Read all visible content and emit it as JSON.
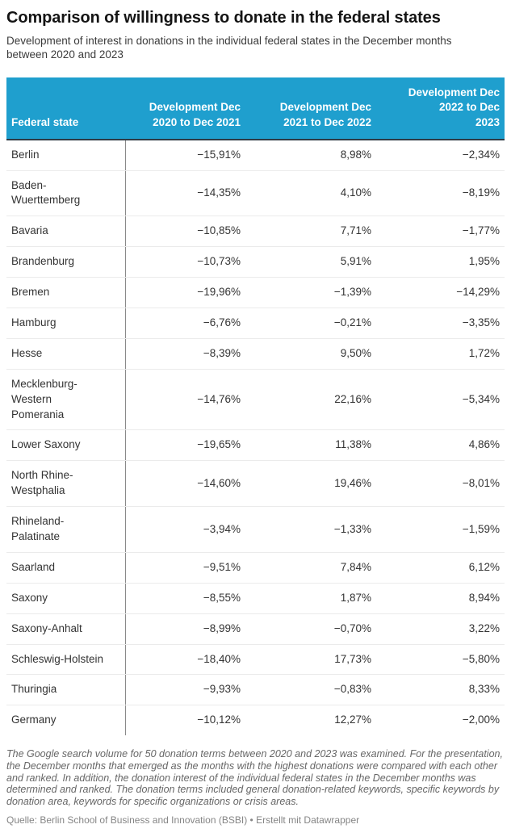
{
  "meta": {
    "title": "Comparison of willingness to donate in the federal states",
    "subtitle": "Development of interest in donations in the individual federal states in the December months\nbetween 2020 and 2023"
  },
  "table": {
    "col_headers": [
      "Federal state",
      "Development Dec\n2020 to Dec 2021",
      "Development Dec\n2021 to Dec 2022",
      "Development Dec\n2022 to Dec\n2023"
    ],
    "rows": [
      {
        "state": "Berlin",
        "values": [
          "−15,91%",
          "8,98%",
          "−2,34%"
        ]
      },
      {
        "state": "Baden-\nWuerttemberg",
        "values": [
          "−14,35%",
          "4,10%",
          "−8,19%"
        ]
      },
      {
        "state": "Bavaria",
        "values": [
          "−10,85%",
          "7,71%",
          "−1,77%"
        ]
      },
      {
        "state": "Brandenburg",
        "values": [
          "−10,73%",
          "5,91%",
          "1,95%"
        ]
      },
      {
        "state": "Bremen",
        "values": [
          "−19,96%",
          "−1,39%",
          "−14,29%"
        ]
      },
      {
        "state": "Hamburg",
        "values": [
          "−6,76%",
          "−0,21%",
          "−3,35%"
        ]
      },
      {
        "state": "Hesse",
        "values": [
          "−8,39%",
          "9,50%",
          "1,72%"
        ]
      },
      {
        "state": "Mecklenburg-\nWestern\nPomerania",
        "values": [
          "−14,76%",
          "22,16%",
          "−5,34%"
        ]
      },
      {
        "state": "Lower Saxony",
        "values": [
          "−19,65%",
          "11,38%",
          "4,86%"
        ]
      },
      {
        "state": "North Rhine-\nWestphalia",
        "values": [
          "−14,60%",
          "19,46%",
          "−8,01%"
        ]
      },
      {
        "state": "Rhineland-\nPalatinate",
        "values": [
          "−3,94%",
          "−1,33%",
          "−1,59%"
        ]
      },
      {
        "state": "Saarland",
        "values": [
          "−9,51%",
          "7,84%",
          "6,12%"
        ]
      },
      {
        "state": "Saxony",
        "values": [
          "−8,55%",
          "1,87%",
          "8,94%"
        ]
      },
      {
        "state": "Saxony-Anhalt",
        "values": [
          "−8,99%",
          "−0,70%",
          "3,22%"
        ]
      },
      {
        "state": "Schleswig-Holstein",
        "values": [
          "−18,40%",
          "17,73%",
          "−5,80%"
        ]
      },
      {
        "state": "Thuringia",
        "values": [
          "−9,93%",
          "−0,83%",
          "8,33%"
        ]
      },
      {
        "state": "Germany",
        "values": [
          "−10,12%",
          "12,27%",
          "−2,00%"
        ]
      }
    ]
  },
  "footer": {
    "note": "The Google search volume for 50 donation terms between 2020 and 2023 was examined. For the presentation, the December months that emerged as the months with the highest donations were compared with each other and ranked. In addition, the donation interest of the individual federal states in the December months was determined and ranked. The donation terms included general donation-related keywords, specific keywords by donation area, keywords for specific organizations or crisis areas.",
    "source_label": "Quelle:",
    "source_text": "Berlin School of Business and Innovation (BSBI)",
    "separator": "•",
    "attribution": "Erstellt mit Datawrapper"
  },
  "colors": {
    "header_bg": "#1f9fce",
    "header_border": "#2f3b45",
    "divider": "#8a8a8a",
    "row_border": "#ebebeb",
    "title_text": "#141414",
    "body_text": "#333333",
    "note_text": "#666666",
    "source_text": "#858585"
  },
  "chart_data": {
    "type": "table",
    "title": "Comparison of willingness to donate in the federal states",
    "subtitle": "Development of interest in donations in the individual federal states in the December months between 2020 and 2023",
    "columns": [
      "Federal state",
      "Development Dec 2020 to Dec 2021",
      "Development Dec 2021 to Dec 2022",
      "Development Dec 2022 to Dec 2023"
    ],
    "units": "percent",
    "decimal_separator": ",",
    "rows": [
      [
        "Berlin",
        -15.91,
        8.98,
        -2.34
      ],
      [
        "Baden-Wuerttemberg",
        -14.35,
        4.1,
        -8.19
      ],
      [
        "Bavaria",
        -10.85,
        7.71,
        -1.77
      ],
      [
        "Brandenburg",
        -10.73,
        5.91,
        1.95
      ],
      [
        "Bremen",
        -19.96,
        -1.39,
        -14.29
      ],
      [
        "Hamburg",
        -6.76,
        -0.21,
        -3.35
      ],
      [
        "Hesse",
        -8.39,
        9.5,
        1.72
      ],
      [
        "Mecklenburg-Western Pomerania",
        -14.76,
        22.16,
        -5.34
      ],
      [
        "Lower Saxony",
        -19.65,
        11.38,
        4.86
      ],
      [
        "North Rhine-Westphalia",
        -14.6,
        19.46,
        -8.01
      ],
      [
        "Rhineland-Palatinate",
        -3.94,
        -1.33,
        -1.59
      ],
      [
        "Saarland",
        -9.51,
        7.84,
        6.12
      ],
      [
        "Saxony",
        -8.55,
        1.87,
        8.94
      ],
      [
        "Saxony-Anhalt",
        -8.99,
        -0.7,
        3.22
      ],
      [
        "Schleswig-Holstein",
        -18.4,
        17.73,
        -5.8
      ],
      [
        "Thuringia",
        -9.93,
        -0.83,
        8.33
      ],
      [
        "Germany",
        -10.12,
        12.27,
        -2.0
      ]
    ],
    "source": "Berlin School of Business and Innovation (BSBI)",
    "attribution": "Erstellt mit Datawrapper"
  }
}
